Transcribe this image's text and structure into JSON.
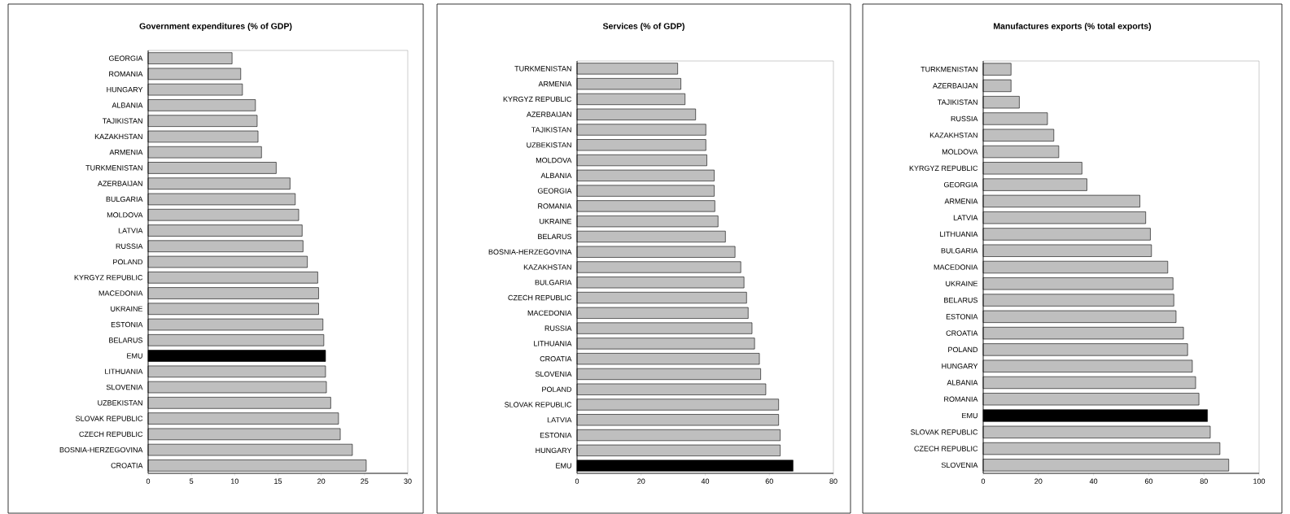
{
  "chart_data": [
    {
      "type": "bar",
      "orientation": "horizontal",
      "title": "Government expenditures (% of GDP)",
      "categories": [
        "GEORGIA",
        "ROMANIA",
        "HUNGARY",
        "ALBANIA",
        "TAJIKISTAN",
        "KAZAKHSTAN",
        "ARMENIA",
        "TURKMENISTAN",
        "AZERBAIJAN",
        "BULGARIA",
        "MOLDOVA",
        "LATVIA",
        "RUSSIA",
        "POLAND",
        "KYRGYZ REPUBLIC",
        "MACEDONIA",
        "UKRAINE",
        "ESTONIA",
        "BELARUS",
        "EMU",
        "LITHUANIA",
        "SLOVENIA",
        "UZBEKISTAN",
        "SLOVAK REPUBLIC",
        "CZECH REPUBLIC",
        "BOSNIA-HERZEGOVINA",
        "CROATIA"
      ],
      "values": [
        9.7,
        10.7,
        10.9,
        12.4,
        12.6,
        12.7,
        13.1,
        14.8,
        16.4,
        17.0,
        17.4,
        17.8,
        17.9,
        18.4,
        19.6,
        19.7,
        19.7,
        20.2,
        20.3,
        20.5,
        20.5,
        20.6,
        21.1,
        22.0,
        22.2,
        23.6,
        25.2
      ],
      "colors": [
        "#bfbfbf",
        "#bfbfbf",
        "#bfbfbf",
        "#bfbfbf",
        "#bfbfbf",
        "#bfbfbf",
        "#bfbfbf",
        "#bfbfbf",
        "#bfbfbf",
        "#bfbfbf",
        "#bfbfbf",
        "#bfbfbf",
        "#bfbfbf",
        "#bfbfbf",
        "#bfbfbf",
        "#bfbfbf",
        "#bfbfbf",
        "#bfbfbf",
        "#bfbfbf",
        "#000000",
        "#bfbfbf",
        "#bfbfbf",
        "#bfbfbf",
        "#bfbfbf",
        "#bfbfbf",
        "#bfbfbf",
        "#bfbfbf"
      ],
      "xlim": [
        0,
        30
      ],
      "xticks": [
        0,
        5,
        10,
        15,
        20,
        25,
        30
      ]
    },
    {
      "type": "bar",
      "orientation": "horizontal",
      "title": "Services (% of GDP)",
      "categories": [
        "TURKMENISTAN",
        "ARMENIA",
        "KYRGYZ REPUBLIC",
        "AZERBAIJAN",
        "TAJIKISTAN",
        "UZBEKISTAN",
        "MOLDOVA",
        "ALBANIA",
        "GEORGIA",
        "ROMANIA",
        "UKRAINE",
        "BELARUS",
        "BOSNIA-HERZEGOVINA",
        "KAZAKHSTAN",
        "BULGARIA",
        "CZECH REPUBLIC",
        "MACEDONIA",
        "RUSSIA",
        "LITHUANIA",
        "CROATIA",
        "SLOVENIA",
        "POLAND",
        "SLOVAK REPUBLIC",
        "LATVIA",
        "ESTONIA",
        "HUNGARY",
        "EMU"
      ],
      "values": [
        31.4,
        32.4,
        33.7,
        37.0,
        40.2,
        40.2,
        40.5,
        42.8,
        42.8,
        43.0,
        44.0,
        46.3,
        49.3,
        51.1,
        52.1,
        52.9,
        53.4,
        54.6,
        55.4,
        56.9,
        57.3,
        58.9,
        62.9,
        62.9,
        63.4,
        63.4,
        67.4
      ],
      "colors": [
        "#bfbfbf",
        "#bfbfbf",
        "#bfbfbf",
        "#bfbfbf",
        "#bfbfbf",
        "#bfbfbf",
        "#bfbfbf",
        "#bfbfbf",
        "#bfbfbf",
        "#bfbfbf",
        "#bfbfbf",
        "#bfbfbf",
        "#bfbfbf",
        "#bfbfbf",
        "#bfbfbf",
        "#bfbfbf",
        "#bfbfbf",
        "#bfbfbf",
        "#bfbfbf",
        "#bfbfbf",
        "#bfbfbf",
        "#bfbfbf",
        "#bfbfbf",
        "#bfbfbf",
        "#bfbfbf",
        "#bfbfbf",
        "#000000"
      ],
      "xlim": [
        0,
        80
      ],
      "xticks": [
        0,
        20,
        40,
        60,
        80
      ]
    },
    {
      "type": "bar",
      "orientation": "horizontal",
      "title": "Manufactures exports (% total exports)",
      "categories": [
        "TURKMENISTAN",
        "AZERBAIJAN",
        "TAJIKISTAN",
        "RUSSIA",
        "KAZAKHSTAN",
        "MOLDOVA",
        "KYRGYZ REPUBLIC",
        "GEORGIA",
        "ARMENIA",
        "LATVIA",
        "LITHUANIA",
        "BULGARIA",
        "MACEDONIA",
        "UKRAINE",
        "BELARUS",
        "ESTONIA",
        "CROATIA",
        "POLAND",
        "HUNGARY",
        "ALBANIA",
        "ROMANIA",
        "EMU",
        "SLOVAK REPUBLIC",
        "CZECH REPUBLIC",
        "SLOVENIA"
      ],
      "values": [
        10.1,
        10.1,
        13.1,
        23.3,
        25.6,
        27.4,
        35.8,
        37.6,
        56.8,
        58.9,
        60.6,
        61.0,
        66.9,
        68.8,
        69.1,
        69.9,
        72.6,
        74.1,
        75.8,
        77.0,
        78.2,
        81.3,
        82.3,
        85.8,
        89.0
      ],
      "colors": [
        "#bfbfbf",
        "#bfbfbf",
        "#bfbfbf",
        "#bfbfbf",
        "#bfbfbf",
        "#bfbfbf",
        "#bfbfbf",
        "#bfbfbf",
        "#bfbfbf",
        "#bfbfbf",
        "#bfbfbf",
        "#bfbfbf",
        "#bfbfbf",
        "#bfbfbf",
        "#bfbfbf",
        "#bfbfbf",
        "#bfbfbf",
        "#bfbfbf",
        "#bfbfbf",
        "#bfbfbf",
        "#bfbfbf",
        "#000000",
        "#bfbfbf",
        "#bfbfbf",
        "#bfbfbf"
      ],
      "xlim": [
        0,
        100
      ],
      "xticks": [
        0,
        20,
        40,
        60,
        80,
        100
      ]
    }
  ]
}
